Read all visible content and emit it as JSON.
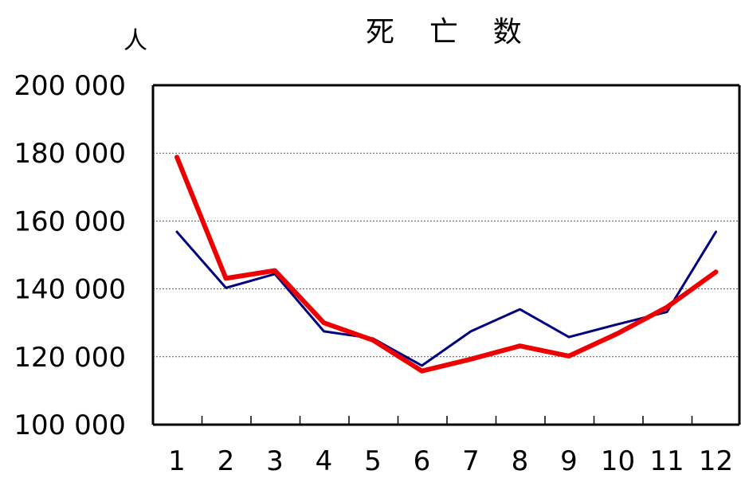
{
  "chart_data": {
    "type": "line",
    "title": "死 亡 数",
    "ylabel": "人",
    "xlabel": "",
    "x": [
      1,
      2,
      3,
      4,
      5,
      6,
      7,
      8,
      9,
      10,
      11,
      12
    ],
    "x_tick_labels": [
      "1",
      "2",
      "3",
      "4",
      "5",
      "6",
      "7",
      "8",
      "9",
      "10",
      "11",
      "12"
    ],
    "ylim": [
      100000,
      200000
    ],
    "y_ticks": [
      100000,
      120000,
      140000,
      160000,
      180000,
      200000
    ],
    "y_tick_labels": [
      "100 000",
      "120 000",
      "140 000",
      "160 000",
      "180 000",
      "200 000"
    ],
    "grid": true,
    "series": [
      {
        "color": "#000080",
        "values": [
          156800,
          140300,
          144400,
          127500,
          125400,
          117400,
          127500,
          134000,
          125800,
          129600,
          133200,
          156800
        ]
      },
      {
        "color": "#ee0000",
        "values": [
          178800,
          143100,
          145400,
          130000,
          124900,
          115800,
          119300,
          123200,
          120200,
          126900,
          134600,
          145000
        ]
      }
    ]
  }
}
